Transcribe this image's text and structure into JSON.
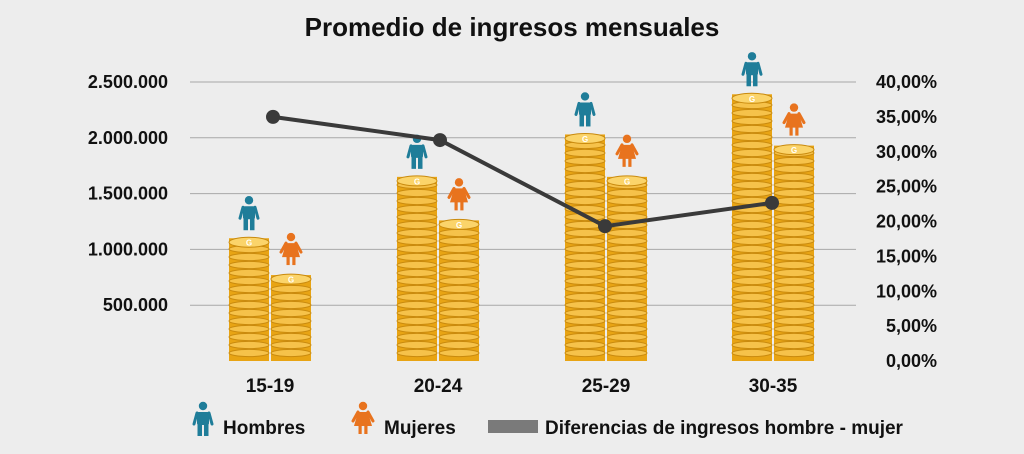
{
  "chart_data": {
    "type": "bar",
    "title": "Promedio de ingresos mensuales",
    "categories": [
      "15-19",
      "20-24",
      "25-29",
      "30-35"
    ],
    "series": [
      {
        "name": "Hombres",
        "kind": "bar",
        "axis": "left",
        "color": "#f2ad1e",
        "icon_color": "#1f7d99",
        "icon": "man-icon",
        "values": [
          1100000,
          1650000,
          2030000,
          2390000
        ]
      },
      {
        "name": "Mujeres",
        "kind": "bar",
        "axis": "left",
        "color": "#f2ad1e",
        "icon_color": "#e8731e",
        "icon": "woman-icon",
        "values": [
          770000,
          1260000,
          1650000,
          1930000
        ]
      },
      {
        "name": "Diferencias de ingresos hombre - mujer",
        "kind": "line",
        "axis": "right",
        "color": "#3a3a3a",
        "values": [
          0.35,
          0.3167,
          0.1933,
          0.2267
        ]
      }
    ],
    "y_left": {
      "ylim": [
        0,
        2500000
      ],
      "ticks": [
        500000,
        1000000,
        1500000,
        2000000,
        2500000
      ],
      "tick_labels": [
        "500.000",
        "1.000.000",
        "1.500.000",
        "2.000.000",
        "2.500.000"
      ]
    },
    "y_right": {
      "ylim": [
        0,
        0.4
      ],
      "ticks": [
        0,
        0.05,
        0.1,
        0.15,
        0.2,
        0.25,
        0.3,
        0.35,
        0.4
      ],
      "tick_labels": [
        "0,00%",
        "5,00%",
        "10,00%",
        "15,00%",
        "20,00%",
        "25,00%",
        "30,00%",
        "35,00%",
        "40,00%"
      ]
    },
    "grid": true,
    "legend_position": "bottom",
    "bar_style": "stacked-coins",
    "coin_label": "G"
  }
}
